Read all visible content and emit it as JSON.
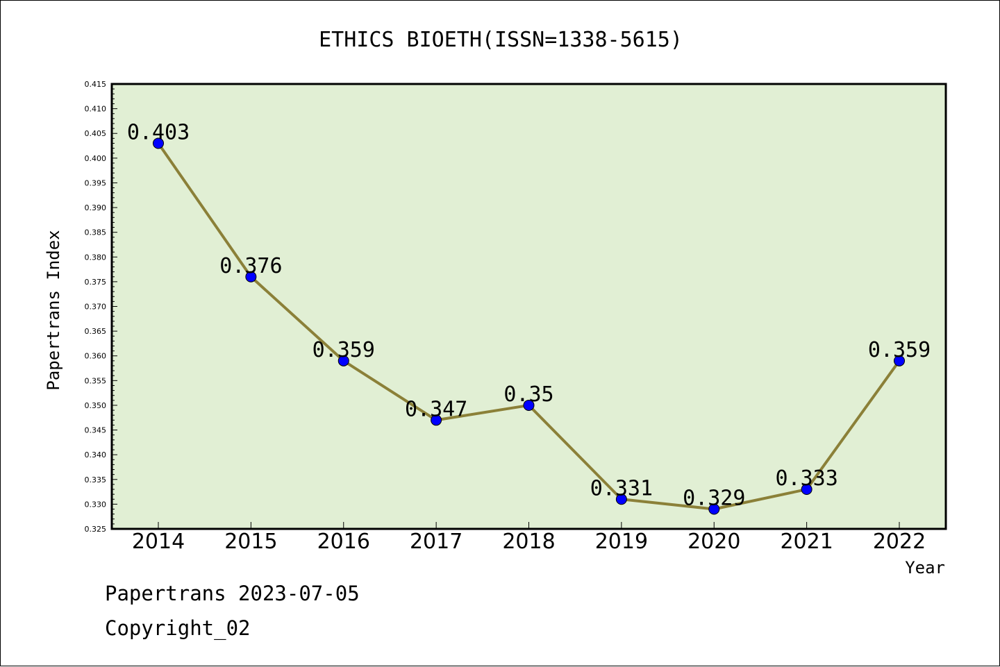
{
  "chart_data": {
    "type": "line",
    "title": "ETHICS BIOETH(ISSN=1338-5615)",
    "xlabel": "Year",
    "ylabel": "Papertrans Index",
    "categories": [
      "2014",
      "2015",
      "2016",
      "2017",
      "2018",
      "2019",
      "2020",
      "2021",
      "2022"
    ],
    "series": [
      {
        "values": [
          0.403,
          0.376,
          0.359,
          0.347,
          0.35,
          0.331,
          0.329,
          0.333,
          0.359
        ]
      }
    ],
    "data_labels": [
      "0.403",
      "0.376",
      "0.359",
      "0.347",
      "0.35",
      "0.331",
      "0.329",
      "0.333",
      "0.359"
    ],
    "ylim": [
      0.325,
      0.415
    ],
    "yticks": [
      "0.325",
      "0.330",
      "0.335",
      "0.340",
      "0.345",
      "0.350",
      "0.355",
      "0.360",
      "0.365",
      "0.370",
      "0.375",
      "0.380",
      "0.385",
      "0.390",
      "0.395",
      "0.400",
      "0.405",
      "0.410",
      "0.415"
    ],
    "grid": false,
    "colors": {
      "plot_background": "#e1efd4",
      "line": "#8b8038",
      "marker": "#0000ff"
    }
  },
  "footer": {
    "line1": "Papertrans 2023-07-05",
    "line2": "Copyright_02"
  }
}
